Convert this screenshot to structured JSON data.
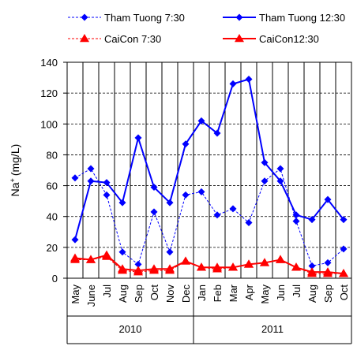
{
  "chart_data": {
    "type": "line",
    "xlabel": "",
    "ylabel": "Na+ (mg/L)",
    "ylabel_base": "Na",
    "ylabel_sup": "+",
    "ylabel_rest": "(mg/L)",
    "ylim": [
      0,
      140
    ],
    "yticks": [
      0,
      20,
      40,
      60,
      80,
      100,
      120,
      140
    ],
    "grid": "horizontal dashed, vertical solid",
    "legend_position": "top",
    "categories": [
      "May",
      "June",
      "Jul",
      "Aug",
      "Sep",
      "Oct",
      "Nov",
      "Dec",
      "Jan",
      "Feb",
      "Mar",
      "Apr",
      "May",
      "Jun",
      "Jul",
      "Aug",
      "Sep",
      "Oct"
    ],
    "year_groups": [
      {
        "label": "2010",
        "start": 0,
        "end": 7
      },
      {
        "label": "2011",
        "start": 8,
        "end": 17
      }
    ],
    "series": [
      {
        "name": "Tham Tuong  7:30",
        "color": "#0000ff",
        "marker": "diamond",
        "line": "dashed",
        "values": [
          65,
          71,
          54,
          17,
          9,
          43,
          17,
          54,
          56,
          41,
          45,
          36,
          63,
          71,
          37,
          8,
          10,
          19
        ]
      },
      {
        "name": "Tham Tuong  12:30",
        "color": "#0000ff",
        "marker": "diamond",
        "line": "solid",
        "values": [
          25,
          63,
          62,
          49,
          91,
          59,
          49,
          87,
          102,
          94,
          126,
          129,
          75,
          63,
          41,
          38,
          51,
          38
        ]
      },
      {
        "name": "CaiCon  7:30",
        "color": "#ff0000",
        "marker": "triangle",
        "line": "dashed",
        "values": [
          12,
          12,
          14,
          5,
          4,
          5,
          5,
          11,
          7,
          6,
          7,
          9,
          10,
          12,
          7,
          3,
          3,
          3
        ]
      },
      {
        "name": "CaiCon12:30",
        "color": "#ff0000",
        "marker": "triangle",
        "line": "solid",
        "values": [
          13,
          12,
          15,
          6,
          5,
          6,
          6,
          11,
          7,
          7,
          7,
          9,
          10,
          12,
          7,
          4,
          4,
          3
        ]
      }
    ]
  }
}
